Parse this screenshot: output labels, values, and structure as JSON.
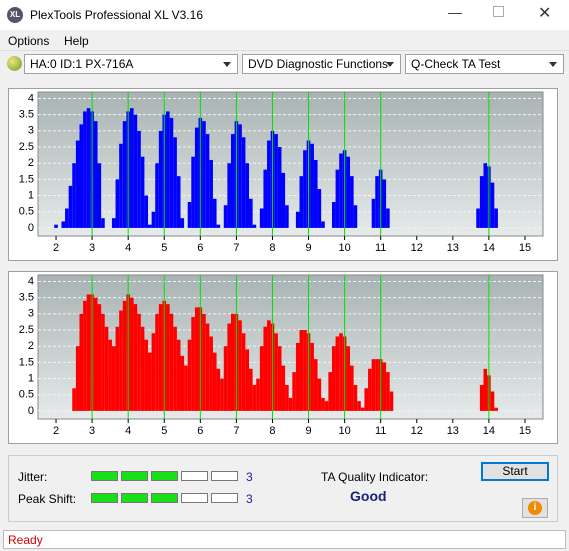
{
  "window": {
    "title": "PlexTools Professional XL V3.16",
    "menu": [
      "Options",
      "Help"
    ],
    "dropdowns": [
      "HA:0 ID:1  PX-716A",
      "DVD Diagnostic Functions",
      "Q-Check TA Test"
    ]
  },
  "chart_data": [
    {
      "type": "bar",
      "color": "#0000ff",
      "marker_color": "#00e000",
      "x": [
        2.0,
        2.1,
        2.2,
        2.3,
        2.4,
        2.5,
        2.6,
        2.7,
        2.8,
        2.9,
        3.0,
        3.1,
        3.2,
        3.3,
        3.4,
        3.5,
        3.6,
        3.7,
        3.8,
        3.9,
        4.0,
        4.1,
        4.2,
        4.3,
        4.4,
        4.5,
        4.6,
        4.7,
        4.8,
        4.9,
        5.0,
        5.1,
        5.2,
        5.3,
        5.4,
        5.5,
        5.6,
        5.7,
        5.8,
        5.9,
        6.0,
        6.1,
        6.2,
        6.3,
        6.4,
        6.5,
        6.6,
        6.7,
        6.8,
        6.9,
        7.0,
        7.1,
        7.2,
        7.3,
        7.4,
        7.5,
        7.6,
        7.7,
        7.8,
        7.9,
        8.0,
        8.1,
        8.2,
        8.3,
        8.4,
        8.5,
        8.6,
        8.7,
        8.8,
        8.9,
        9.0,
        9.1,
        9.2,
        9.3,
        9.4,
        9.5,
        9.6,
        9.7,
        9.8,
        9.9,
        10.0,
        10.1,
        10.2,
        10.3,
        10.4,
        10.5,
        10.6,
        10.7,
        10.8,
        10.9,
        11.0,
        11.1,
        11.2,
        11.3,
        11.4,
        11.5,
        11.6,
        11.7,
        11.8,
        11.9,
        12.0,
        12.1,
        12.2,
        12.3,
        12.4,
        12.5,
        12.6,
        12.7,
        12.8,
        12.9,
        13.0,
        13.1,
        13.2,
        13.3,
        13.4,
        13.5,
        13.6,
        13.7,
        13.8,
        13.9,
        14.0,
        14.1,
        14.2,
        14.3,
        14.4
      ],
      "values": [
        0.1,
        0,
        0.2,
        0.6,
        1.3,
        2.0,
        2.7,
        3.2,
        3.6,
        3.7,
        3.6,
        3.3,
        2.0,
        0.3,
        0,
        0,
        0.3,
        1.5,
        2.6,
        3.3,
        3.6,
        3.7,
        3.5,
        3.0,
        2.2,
        1.0,
        0.1,
        0.5,
        2.0,
        3.0,
        3.5,
        3.6,
        3.4,
        2.8,
        1.6,
        0.3,
        0,
        0.8,
        2.2,
        3.1,
        3.4,
        3.3,
        2.9,
        2.1,
        0.9,
        0.1,
        0,
        0.7,
        2.0,
        2.9,
        3.3,
        3.2,
        2.8,
        2.0,
        0.9,
        0.1,
        0,
        0.6,
        1.8,
        2.7,
        3.0,
        2.9,
        2.5,
        1.7,
        0.7,
        0,
        0,
        0.5,
        1.6,
        2.4,
        2.7,
        2.6,
        2.1,
        1.2,
        0.2,
        0,
        0,
        0.8,
        1.8,
        2.3,
        2.4,
        2.2,
        1.6,
        0.7,
        0,
        0,
        0,
        0,
        0.9,
        1.6,
        1.8,
        1.5,
        0.6,
        0,
        0,
        0,
        0,
        0,
        0,
        0,
        0,
        0,
        0,
        0,
        0,
        0,
        0,
        0,
        0,
        0,
        0,
        0,
        0,
        0,
        0,
        0,
        0,
        0.6,
        1.6,
        2.0,
        1.9,
        1.4,
        0.6,
        0,
        0
      ],
      "markers": [
        3,
        4,
        5,
        6,
        7,
        8,
        9,
        10,
        11,
        14
      ],
      "xlim": [
        1.5,
        15.5
      ],
      "xticks": [
        2,
        3,
        4,
        5,
        6,
        7,
        8,
        9,
        10,
        11,
        12,
        13,
        14,
        15
      ],
      "ylim": [
        -0.25,
        4.2
      ],
      "yticks": [
        0,
        0.5,
        1,
        1.5,
        2,
        2.5,
        3,
        3.5,
        4
      ],
      "grid": true
    },
    {
      "type": "bar",
      "color": "#ff0000",
      "marker_color": "#00e000",
      "x": [
        2.0,
        2.1,
        2.2,
        2.3,
        2.4,
        2.5,
        2.6,
        2.7,
        2.8,
        2.9,
        3.0,
        3.1,
        3.2,
        3.3,
        3.4,
        3.5,
        3.6,
        3.7,
        3.8,
        3.9,
        4.0,
        4.1,
        4.2,
        4.3,
        4.4,
        4.5,
        4.6,
        4.7,
        4.8,
        4.9,
        5.0,
        5.1,
        5.2,
        5.3,
        5.4,
        5.5,
        5.6,
        5.7,
        5.8,
        5.9,
        6.0,
        6.1,
        6.2,
        6.3,
        6.4,
        6.5,
        6.6,
        6.7,
        6.8,
        6.9,
        7.0,
        7.1,
        7.2,
        7.3,
        7.4,
        7.5,
        7.6,
        7.7,
        7.8,
        7.9,
        8.0,
        8.1,
        8.2,
        8.3,
        8.4,
        8.5,
        8.6,
        8.7,
        8.8,
        8.9,
        9.0,
        9.1,
        9.2,
        9.3,
        9.4,
        9.5,
        9.6,
        9.7,
        9.8,
        9.9,
        10.0,
        10.1,
        10.2,
        10.3,
        10.4,
        10.5,
        10.6,
        10.7,
        10.8,
        10.9,
        11.0,
        11.1,
        11.2,
        11.3,
        11.4,
        11.5,
        11.6,
        11.7,
        11.8,
        11.9,
        12.0,
        12.1,
        12.2,
        12.3,
        12.4,
        12.5,
        12.6,
        12.7,
        12.8,
        12.9,
        13.0,
        13.1,
        13.2,
        13.3,
        13.4,
        13.5,
        13.6,
        13.7,
        13.8,
        13.9,
        14.0,
        14.1,
        14.2,
        14.3,
        14.4
      ],
      "values": [
        0,
        0,
        0,
        0,
        0,
        0.7,
        2.0,
        3.0,
        3.4,
        3.6,
        3.6,
        3.5,
        3.3,
        3.0,
        2.6,
        2.2,
        2.0,
        2.6,
        3.1,
        3.4,
        3.6,
        3.5,
        3.3,
        3.0,
        2.6,
        2.2,
        1.8,
        2.4,
        3.0,
        3.3,
        3.4,
        3.3,
        3.0,
        2.6,
        2.2,
        1.7,
        1.4,
        2.2,
        2.9,
        3.2,
        3.2,
        3.0,
        2.7,
        2.3,
        1.8,
        1.3,
        1.0,
        2.0,
        2.7,
        3.0,
        3.0,
        2.8,
        2.4,
        1.9,
        1.3,
        0.8,
        1.0,
        2.0,
        2.6,
        2.8,
        2.7,
        2.4,
        2.0,
        1.4,
        0.8,
        0.4,
        1.2,
        2.1,
        2.5,
        2.5,
        2.4,
        2.1,
        1.6,
        1.0,
        0.4,
        0.3,
        1.2,
        2.0,
        2.3,
        2.4,
        2.3,
        2.0,
        1.4,
        0.8,
        0.3,
        0.1,
        0.7,
        1.3,
        1.6,
        1.6,
        1.6,
        1.5,
        1.2,
        0.6,
        0,
        0,
        0,
        0,
        0,
        0,
        0,
        0,
        0,
        0,
        0,
        0,
        0,
        0,
        0,
        0,
        0,
        0,
        0,
        0,
        0,
        0,
        0,
        0,
        0.8,
        1.3,
        1.1,
        0.6,
        0.1,
        0,
        0
      ],
      "markers": [
        3,
        4,
        5,
        6,
        7,
        8,
        9,
        10,
        11,
        14
      ],
      "xlim": [
        1.5,
        15.5
      ],
      "xticks": [
        2,
        3,
        4,
        5,
        6,
        7,
        8,
        9,
        10,
        11,
        12,
        13,
        14,
        15
      ],
      "ylim": [
        -0.25,
        4.2
      ],
      "yticks": [
        0,
        0.5,
        1,
        1.5,
        2,
        2.5,
        3,
        3.5,
        4
      ],
      "grid": true
    }
  ],
  "results": {
    "jitter": {
      "label": "Jitter:",
      "value": 3
    },
    "peak_shift": {
      "label": "Peak Shift:",
      "value": 3
    },
    "segments": 5,
    "quality_label": "TA Quality Indicator:",
    "quality": "Good",
    "start": "Start"
  },
  "status": "Ready"
}
